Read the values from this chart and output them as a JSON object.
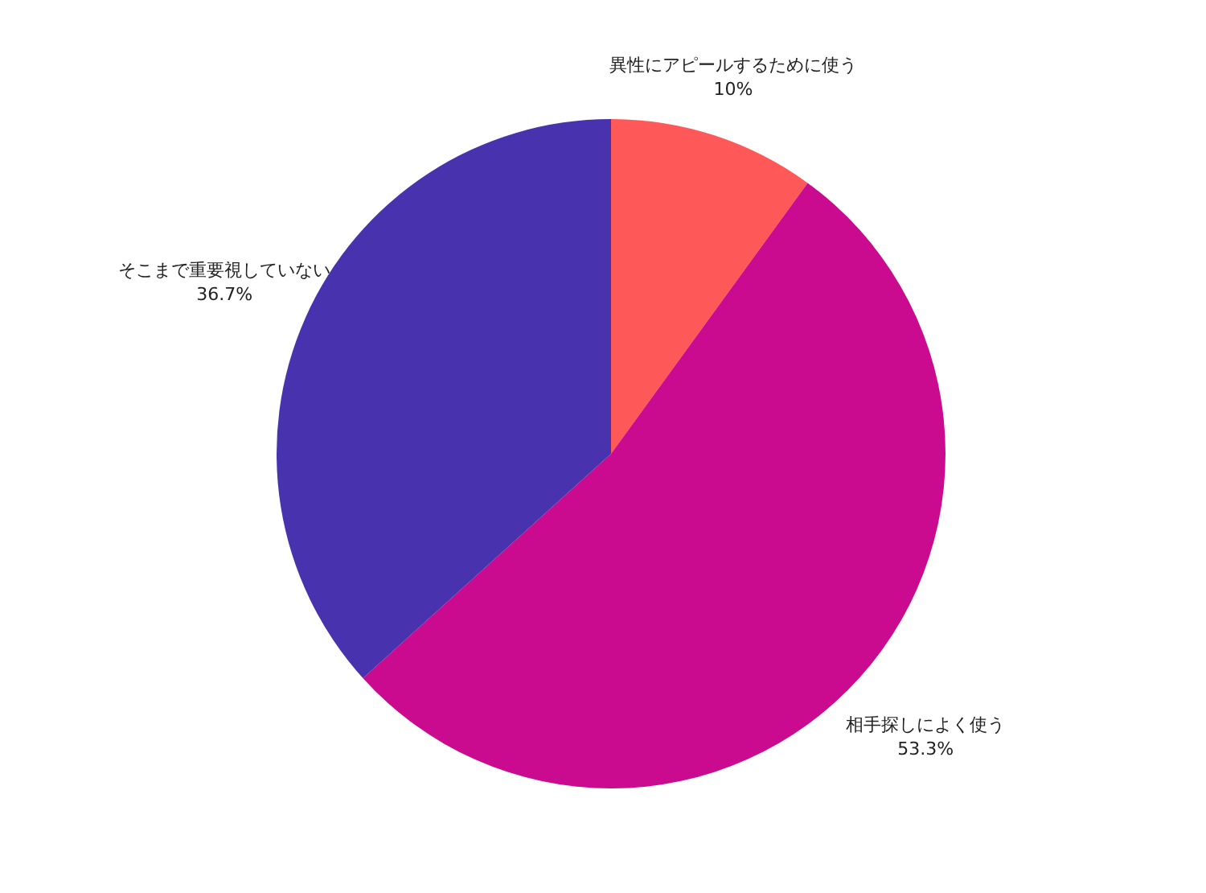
{
  "chart_data": {
    "type": "pie",
    "categories": [
      "異性にアピールするために使う",
      "相手探しによく使う",
      "そこまで重要視していない"
    ],
    "values": [
      10,
      53.3,
      36.7
    ],
    "colors": [
      "#fe5858",
      "#cb0b8f",
      "#4832ad"
    ],
    "value_labels": [
      "10%",
      "53.3%",
      "36.7%"
    ]
  }
}
